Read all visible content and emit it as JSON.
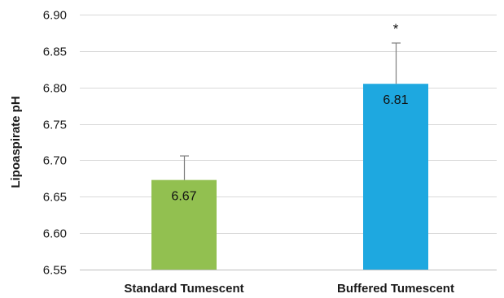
{
  "chart_data": {
    "type": "bar",
    "categories": [
      "Standard Tumescent",
      "Buffered Tumescent"
    ],
    "values": [
      6.673,
      6.805
    ],
    "data_labels": [
      "6.67",
      "6.81"
    ],
    "error_upper": [
      0.033,
      0.056
    ],
    "colors": [
      "#92c050",
      "#1ea8e0"
    ],
    "annotations": [
      "",
      "*"
    ],
    "title": "",
    "xlabel": "",
    "ylabel": "Lipoaspirate pH",
    "ylim": [
      6.55,
      6.9
    ],
    "yticks": [
      6.55,
      6.6,
      6.65,
      6.7,
      6.75,
      6.8,
      6.85,
      6.9
    ],
    "ytick_labels": [
      "6.55",
      "6.60",
      "6.65",
      "6.70",
      "6.75",
      "6.80",
      "6.85",
      "6.90"
    ],
    "grid": true,
    "legend": "none"
  }
}
